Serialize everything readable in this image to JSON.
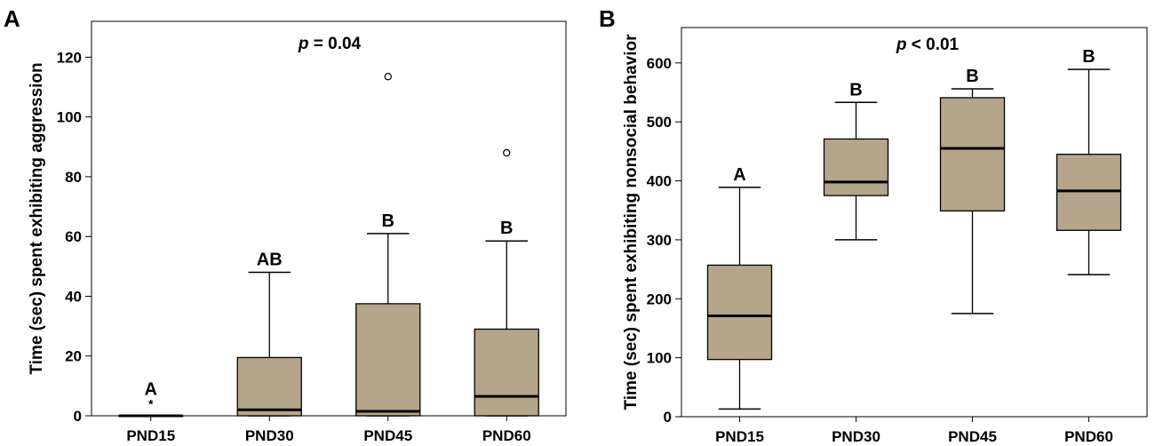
{
  "colors": {
    "box_fill": "#b5a58a",
    "stroke": "#000000",
    "background": "#ffffff"
  },
  "chart_data": [
    {
      "type": "box",
      "panel_label": "A",
      "ylabel": "Time (sec) spent exhibiting aggression",
      "annotation": {
        "p_symbol": "p",
        "p_text": " = 0.04"
      },
      "ylim": [
        0,
        132
      ],
      "yticks": [
        0,
        20,
        40,
        60,
        80,
        100,
        120
      ],
      "categories": [
        "PND15",
        "PND30",
        "PND45",
        "PND60"
      ],
      "boxes": [
        {
          "category": "PND15",
          "whisker_low": 0,
          "q1": 0,
          "median": 0,
          "q3": 0,
          "whisker_high": 0,
          "outliers": [],
          "extremes": [
            0.5
          ],
          "label": "A"
        },
        {
          "category": "PND30",
          "whisker_low": 0,
          "q1": 0,
          "median": 2,
          "q3": 19.5,
          "whisker_high": 48,
          "outliers": [],
          "extremes": [],
          "label": "AB"
        },
        {
          "category": "PND45",
          "whisker_low": 0,
          "q1": 0,
          "median": 1.5,
          "q3": 37.5,
          "whisker_high": 61,
          "outliers": [
            113.5
          ],
          "extremes": [],
          "label": "B"
        },
        {
          "category": "PND60",
          "whisker_low": 0,
          "q1": 0,
          "median": 6.5,
          "q3": 29,
          "whisker_high": 58.5,
          "outliers": [
            88
          ],
          "extremes": [],
          "label": "B"
        }
      ]
    },
    {
      "type": "box",
      "panel_label": "B",
      "ylabel": "Time (sec) spent exhibiting nonsocial behavior",
      "annotation": {
        "p_symbol": "p",
        "p_text": " < 0.01"
      },
      "ylim": [
        0,
        660
      ],
      "yticks": [
        0,
        100,
        200,
        300,
        400,
        500,
        600
      ],
      "categories": [
        "PND15",
        "PND30",
        "PND45",
        "PND60"
      ],
      "boxes": [
        {
          "category": "PND15",
          "whisker_low": 13,
          "q1": 97,
          "median": 171,
          "q3": 257,
          "whisker_high": 389,
          "outliers": [],
          "extremes": [],
          "label": "A"
        },
        {
          "category": "PND30",
          "whisker_low": 300,
          "q1": 375,
          "median": 398,
          "q3": 471,
          "whisker_high": 533,
          "outliers": [],
          "extremes": [],
          "label": "B"
        },
        {
          "category": "PND45",
          "whisker_low": 175,
          "q1": 349,
          "median": 455,
          "q3": 541,
          "whisker_high": 556,
          "outliers": [],
          "extremes": [],
          "label": "B"
        },
        {
          "category": "PND60",
          "whisker_low": 241,
          "q1": 316,
          "median": 383,
          "q3": 445,
          "whisker_high": 589,
          "outliers": [],
          "extremes": [],
          "label": "B"
        }
      ]
    }
  ]
}
